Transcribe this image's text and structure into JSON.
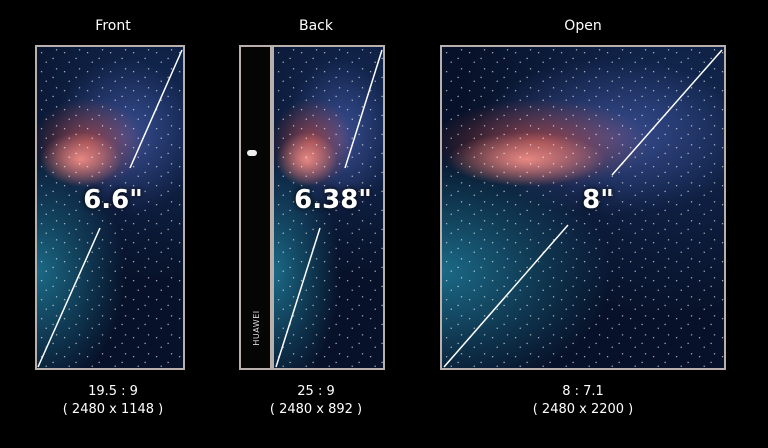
{
  "devices": [
    {
      "label": "Front",
      "size": "6.6\"",
      "ratio": "19.5 : 9",
      "resolution": "( 2480 x 1148 )"
    },
    {
      "label": "Back",
      "size": "6.38\"",
      "ratio": "25 : 9",
      "resolution": "( 2480 x 892 )"
    },
    {
      "label": "Open",
      "size": "8\"",
      "ratio": "8 : 7.1",
      "resolution": "( 2480 x 2200 )"
    }
  ],
  "brand_text": "HUAWEI"
}
